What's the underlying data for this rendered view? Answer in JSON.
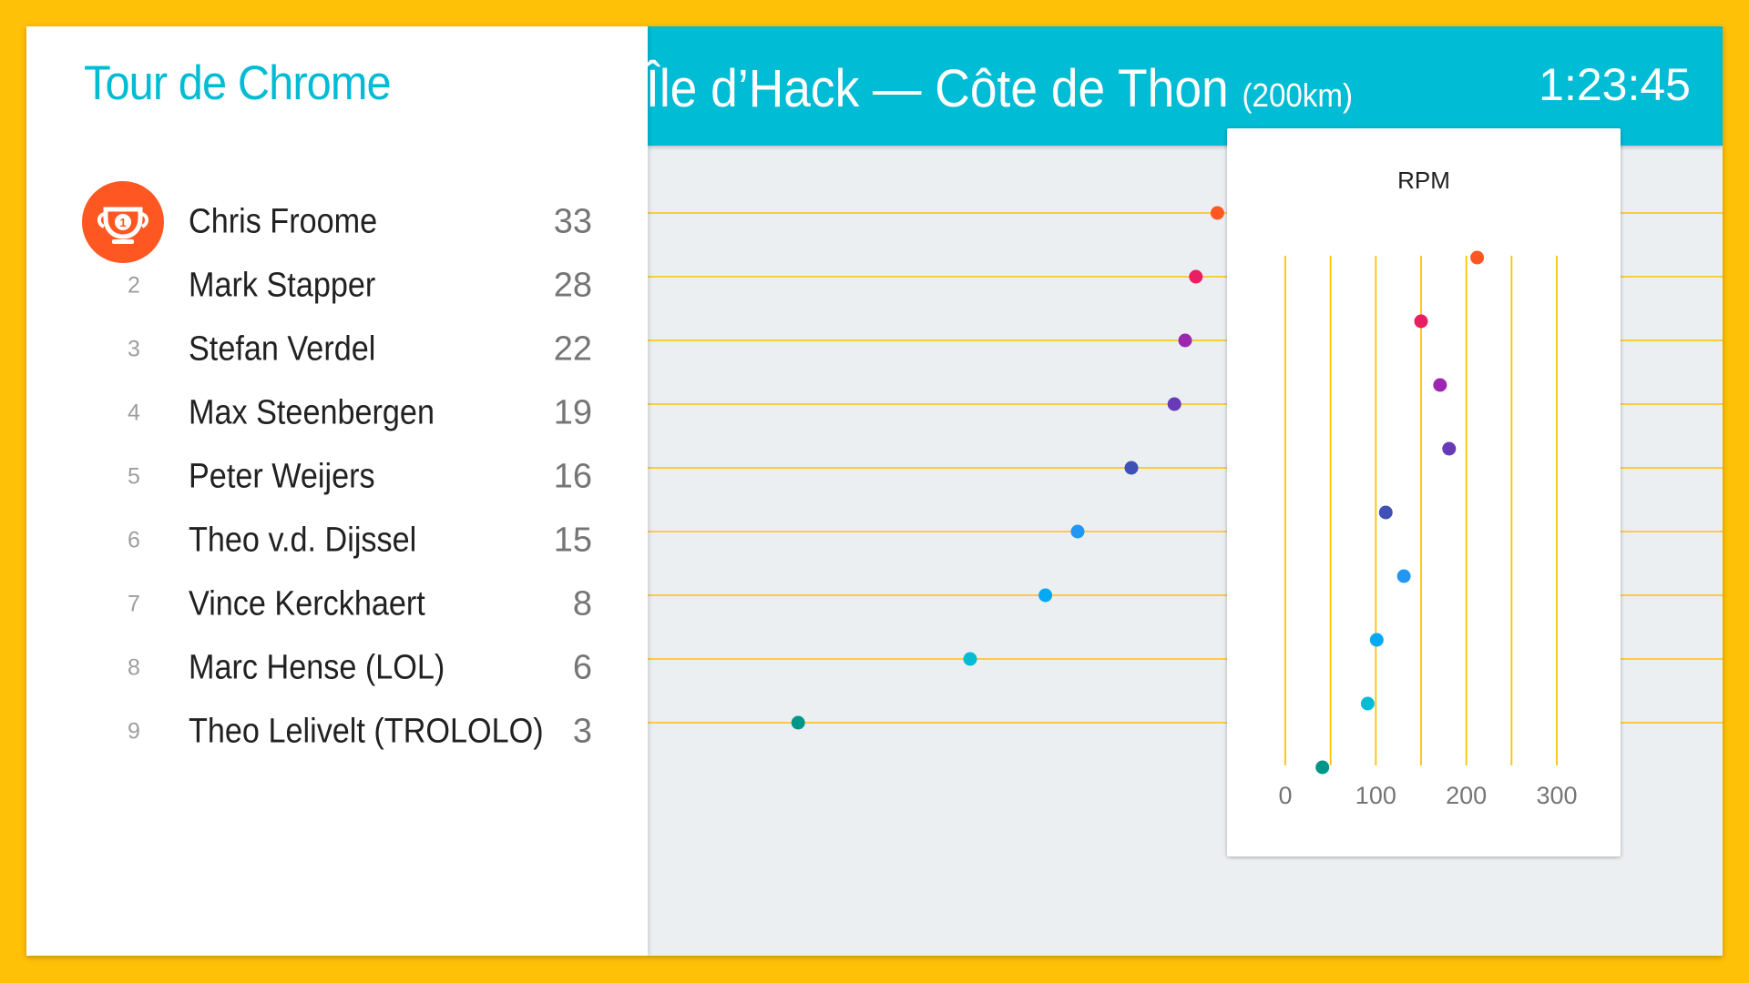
{
  "app": {
    "title": "Tour de Chrome"
  },
  "stage": {
    "name": "Île d’Hack — Côte de Thon",
    "distance": "(200km)",
    "timer": "1:23:45"
  },
  "leaderboard": {
    "leader_badge_label": "1",
    "riders": [
      {
        "rank": "1",
        "name": "Chris Froome",
        "score": "33",
        "color": "#FF5722"
      },
      {
        "rank": "2",
        "name": "Mark Stapper",
        "score": "28",
        "color": "#E91E63"
      },
      {
        "rank": "3",
        "name": "Stefan Verdel",
        "score": "22",
        "color": "#9C27B0"
      },
      {
        "rank": "4",
        "name": "Max Steenbergen",
        "score": "19",
        "color": "#673AB7"
      },
      {
        "rank": "5",
        "name": "Peter Weijers",
        "score": "16",
        "color": "#3F51B5"
      },
      {
        "rank": "6",
        "name": "Theo v.d. Dijssel",
        "score": "15",
        "color": "#2196F3"
      },
      {
        "rank": "7",
        "name": "Vince Kerckhaert",
        "score": "8",
        "color": "#03A9F4"
      },
      {
        "rank": "8",
        "name": "Marc Hense (LOL)",
        "score": "6",
        "color": "#00BCD4"
      },
      {
        "rank": "9",
        "name": "Theo Lelivelt (TROLOLO)",
        "score": "3",
        "color": "#009688"
      }
    ]
  },
  "track": {
    "progress_km": [
      106,
      102,
      100,
      98,
      90,
      80,
      74,
      60,
      28
    ],
    "total_km": 200,
    "line_color": "#FFC107"
  },
  "chart_data": {
    "type": "scatter",
    "title": "RPM",
    "xlim": [
      0,
      300
    ],
    "x_ticks": [
      0,
      100,
      200,
      300
    ],
    "grid": true,
    "series": [
      {
        "values": [
          212,
          150,
          171,
          181,
          111,
          131,
          101,
          91,
          41
        ]
      }
    ]
  }
}
